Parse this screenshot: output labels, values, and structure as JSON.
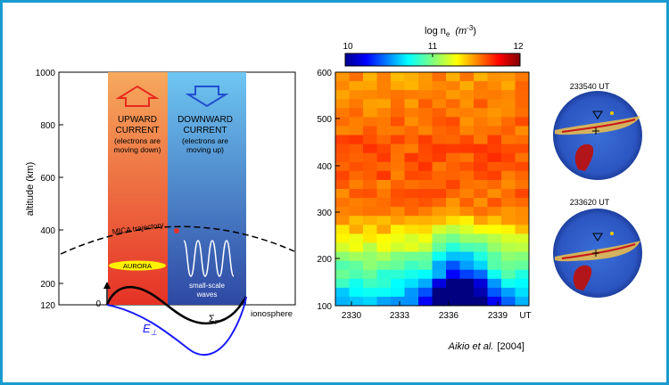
{
  "left_panel": {
    "y_axis_label": "altitude  (km)",
    "y_ticks": [
      "1000",
      "800",
      "600",
      "400",
      "200",
      "120"
    ],
    "origin_label": "0",
    "upward": {
      "title_line1": "UPWARD",
      "title_line2": "CURRENT",
      "note_line1": "(electrons are",
      "note_line2": "moving down)"
    },
    "downward": {
      "title_line1": "DOWNWARD",
      "title_line2": "CURRENT",
      "note_line1": "(electrons are",
      "note_line2": "moving up)"
    },
    "trajectory_label": "MICA  trajectory",
    "aurora_label": "AURORA",
    "waves_line1": "small-scale",
    "waves_line2": "waves",
    "sigma_label": "Σ",
    "sigma_sub": "P",
    "efield_label": "E",
    "efield_sub": "⊥",
    "ionosphere_label": "ionosphere",
    "colors": {
      "upward_top": "#f5a55a",
      "upward_bottom": "#e8302a",
      "downward_top": "#6fc3f0",
      "downward_bottom": "#2f4fa8",
      "efield": "#1a1aff",
      "aurora": "#fff200"
    }
  },
  "colorbar": {
    "title": "log  n",
    "title_sub": "e",
    "unit": "(m",
    "unit_sup": "-3",
    "unit_close": ")",
    "ticks": [
      "10",
      "11",
      "12"
    ]
  },
  "chart_data": {
    "type": "heatmap",
    "title": "log  ne  (m-3)",
    "ylim": [
      100,
      600
    ],
    "y_ticks": [
      "600",
      "500",
      "400",
      "300",
      "200",
      "100"
    ],
    "x_ticks": [
      "2330",
      "2333",
      "2336",
      "2339",
      "UT"
    ],
    "color_range": [
      10,
      12
    ]
  },
  "images": [
    {
      "label": "233540 UT"
    },
    {
      "label": "233620 UT"
    }
  ],
  "citation": {
    "authors": "Aikio et al.",
    "year": "[2004]"
  }
}
